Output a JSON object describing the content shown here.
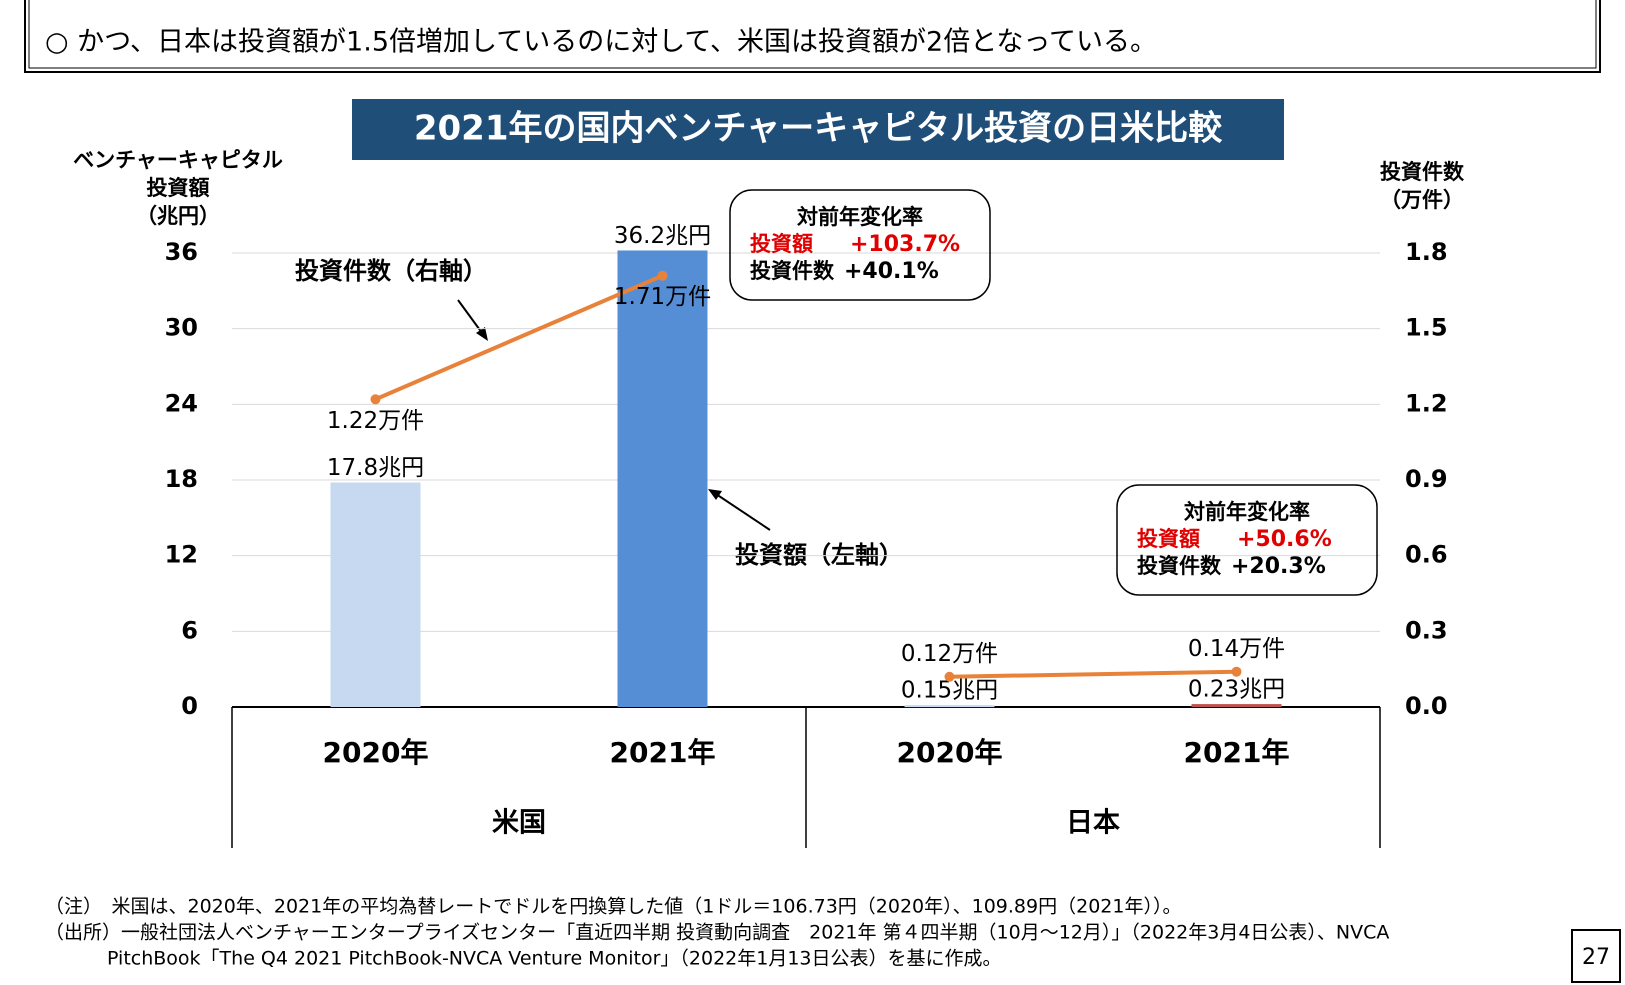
{
  "header": {
    "text": "○ かつ、日本は投資額が1.5倍増加しているのに対して、米国は投資額が2倍となっている。"
  },
  "chart_data": {
    "type": "combo",
    "title": "2021年の国内ベンチャーキャピタル投資の日米比較",
    "y_label_lines": [
      "ベンチャーキャピタル",
      "投資額",
      "（兆円）"
    ],
    "y2_label_lines": [
      "投資件数",
      "（万件）"
    ],
    "categories": [
      "2020年",
      "2021年",
      "2020年",
      "2021年"
    ],
    "category_groups": [
      "米国",
      "日本"
    ],
    "series": [
      {
        "name": "投資額",
        "kind": "bar",
        "colors": [
          "#c6d9f0",
          "#558ed5",
          "#c6d9f0",
          "#c0504d"
        ],
        "values": [
          17.8,
          36.2,
          0.15,
          0.23
        ],
        "value_labels": [
          "17.8兆円",
          "36.2兆円",
          "0.15兆円",
          "0.23兆円"
        ]
      },
      {
        "name": "投資件数",
        "kind": "line",
        "axis": "y2",
        "color": "#e8823a",
        "values": [
          1.22,
          1.71,
          0.12,
          0.14
        ],
        "value_labels": [
          "1.22万件",
          "1.71万件",
          "0.12万件",
          "0.14万件"
        ]
      }
    ],
    "annotations": [
      "投資件数（右軸）",
      "投資額（左軸）"
    ],
    "callouts": [
      {
        "title": "対前年変化率",
        "rows": [
          [
            "投資額",
            "+103.7%"
          ],
          [
            "投資件数",
            "+40.1%"
          ]
        ]
      },
      {
        "title": "対前年変化率",
        "rows": [
          [
            "投資額",
            "+50.6%"
          ],
          [
            "投資件数",
            "+20.3%"
          ]
        ]
      }
    ],
    "ylim": [
      0,
      36
    ],
    "yticks": [
      0,
      6,
      12,
      18,
      24,
      30,
      36
    ],
    "y2lim": [
      0,
      1.8
    ],
    "y2ticks": [
      {
        "value": 0,
        "label": "0.0"
      },
      0.3,
      0.6,
      0.9,
      1.2,
      1.5,
      1.8
    ],
    "grid": true
  },
  "notes": [
    "（注）　米国は、2020年、2021年の平均為替レートでドルを円換算した値（1ドル＝106.73円（2020年）、109.89円（2021年））。",
    "（出所）一般社団法人ベンチャーエンタープライズセンター「直近四半期 投資動向調査　2021年 第４四半期（10月～12月）」（2022年3月4日公表）、NVCA",
    "PitchBook「The Q4 2021 PitchBook-NVCA Venture Monitor」（2022年1月13日公表）を基に作成。"
  ],
  "page_number": "27"
}
